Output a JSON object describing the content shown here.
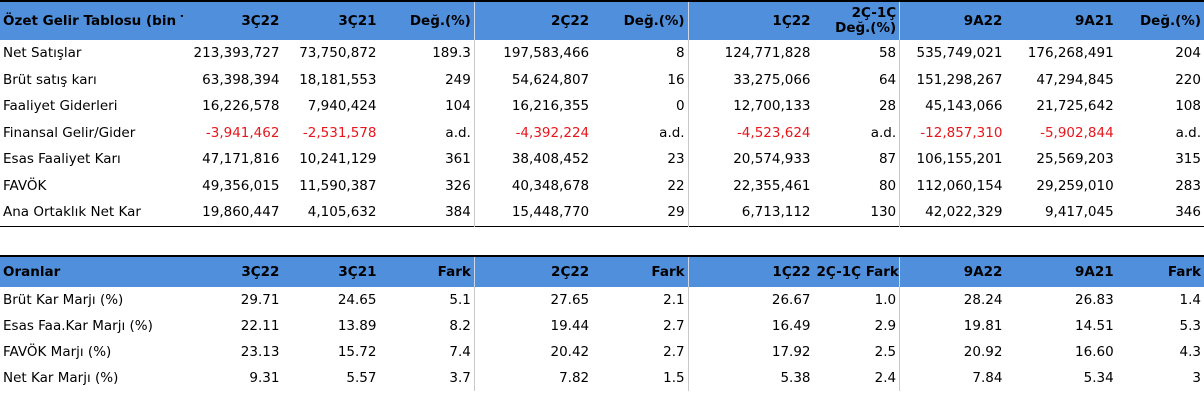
{
  "income_table": {
    "columns": [
      "Özet Gelir Tablosu (bin TL)",
      "3Ç22",
      "3Ç21",
      "Değ.(%)",
      "2Ç22",
      "Değ.(%)",
      "1Ç22",
      "2Ç-1Ç Değ.(%)",
      "9A22",
      "9A21",
      "Değ.(%)"
    ],
    "rows": [
      {
        "label": "Net Satışlar",
        "cells": [
          "213,393,727",
          "73,750,872",
          "189.3",
          "197,583,466",
          "8",
          "124,771,828",
          "58",
          "535,749,021",
          "176,268,491",
          "204"
        ],
        "negative": false
      },
      {
        "label": "Brüt satış karı",
        "cells": [
          "63,398,394",
          "18,181,553",
          "249",
          "54,624,807",
          "16",
          "33,275,066",
          "64",
          "151,298,267",
          "47,294,845",
          "220"
        ],
        "negative": false
      },
      {
        "label": "Faaliyet Giderleri",
        "cells": [
          "16,226,578",
          "7,940,424",
          "104",
          "16,216,355",
          "0",
          "12,700,133",
          "28",
          "45,143,066",
          "21,725,642",
          "108"
        ],
        "negative": false
      },
      {
        "label": "Finansal Gelir/Gider",
        "cells": [
          "-3,941,462",
          "-2,531,578",
          "a.d.",
          "-4,392,224",
          "a.d.",
          "-4,523,624",
          "a.d.",
          "-12,857,310",
          "-5,902,844",
          "a.d."
        ],
        "negative": true
      },
      {
        "label": "Esas Faaliyet Karı",
        "cells": [
          "47,171,816",
          "10,241,129",
          "361",
          "38,408,452",
          "23",
          "20,574,933",
          "87",
          "106,155,201",
          "25,569,203",
          "315"
        ],
        "negative": false
      },
      {
        "label": "FAVÖK",
        "cells": [
          "49,356,015",
          "11,590,387",
          "326",
          "40,348,678",
          "22",
          "22,355,461",
          "80",
          "112,060,154",
          "29,259,010",
          "283"
        ],
        "negative": false
      },
      {
        "label": "Ana Ortaklık Net Kar",
        "cells": [
          "19,860,447",
          "4,105,632",
          "384",
          "15,448,770",
          "29",
          "6,713,112",
          "130",
          "42,022,329",
          "9,417,045",
          "346"
        ],
        "negative": false
      }
    ]
  },
  "ratio_table": {
    "columns": [
      "Oranlar",
      "3Ç22",
      "3Ç21",
      "Fark",
      "2Ç22",
      "Fark",
      "1Ç22",
      "2Ç-1Ç Fark",
      "9A22",
      "9A21",
      "Fark"
    ],
    "rows": [
      {
        "label": "Brüt Kar Marjı (%)",
        "cells": [
          "29.71",
          "24.65",
          "5.1",
          "27.65",
          "2.1",
          "26.67",
          "1.0",
          "28.24",
          "26.83",
          "1.4"
        ]
      },
      {
        "label": "Esas Faa.Kar Marjı (%)",
        "cells": [
          "22.11",
          "13.89",
          "8.2",
          "19.44",
          "2.7",
          "16.49",
          "2.9",
          "19.81",
          "14.51",
          "5.3"
        ]
      },
      {
        "label": "FAVÖK Marjı (%)",
        "cells": [
          "23.13",
          "15.72",
          "7.4",
          "20.42",
          "2.7",
          "17.92",
          "2.5",
          "20.92",
          "16.60",
          "4.3"
        ]
      },
      {
        "label": "Net Kar Marjı (%)",
        "cells": [
          "9.31",
          "5.57",
          "3.7",
          "7.82",
          "1.5",
          "5.38",
          "2.4",
          "7.84",
          "5.34",
          "3"
        ]
      }
    ]
  },
  "colors": {
    "header_bg": "#4f8fdb",
    "negative": "#e8161b"
  }
}
